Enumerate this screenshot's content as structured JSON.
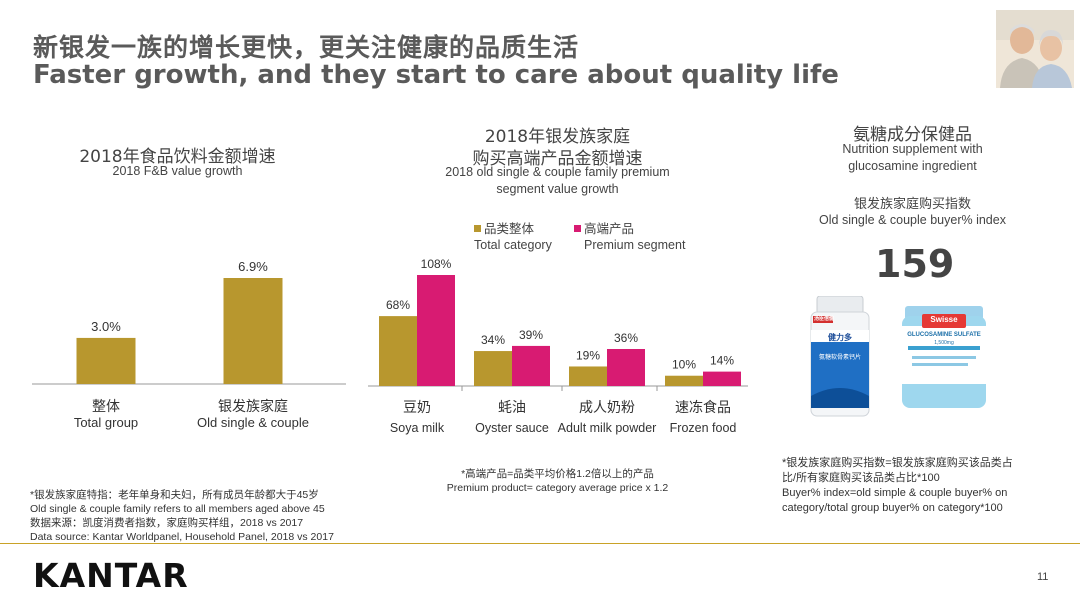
{
  "title": {
    "cn": "新银发一族的增长更快，更关注健康的品质生活",
    "en": "Faster growth, and they start to care about quality life"
  },
  "left_heading": {
    "cn": "2018年食品饮料金额增速",
    "en": "2018 F&B value growth"
  },
  "middle_heading": {
    "cn_line1": "2018年银发族家庭",
    "cn_line2": "购买高端产品金额增速",
    "en_line1": "2018 old single & couple family premium",
    "en_line2": "segment value growth"
  },
  "right_heading": {
    "cn": "氨糖成分保健品",
    "en_line1": "Nutrition supplement with",
    "en_line2": "glucosamine ingredient",
    "index_cn": "银发族家庭购买指数",
    "index_en": "Old single & couple buyer% index",
    "index_value": "159"
  },
  "legend": {
    "total_cn": "品类整体",
    "total_en": "Total category",
    "premium_cn": "高端产品",
    "premium_en": "Premium segment"
  },
  "colors": {
    "gold": "#b8972e",
    "pink": "#d81b72",
    "axis": "#999999",
    "footer_line": "#c9a227"
  },
  "chart_data": [
    {
      "type": "bar",
      "title": "2018年食品饮料金额增速 / 2018 F&B value growth",
      "categories": [
        "整体",
        "银发族家庭"
      ],
      "categories_en": [
        "Total group",
        "Old single & couple"
      ],
      "values": [
        3.0,
        6.9
      ],
      "value_labels": [
        "3.0%",
        "6.9%"
      ],
      "unit": "%",
      "ylim": [
        0,
        7.5
      ]
    },
    {
      "type": "bar",
      "title": "2018年银发族家庭购买高端产品金额增速 / 2018 old single & couple family premium segment value growth",
      "categories": [
        "豆奶",
        "蚝油",
        "成人奶粉",
        "速冻食品"
      ],
      "categories_en": [
        "Soya milk",
        "Oyster sauce",
        "Adult milk powder",
        "Frozen food"
      ],
      "series": [
        {
          "name": "品类整体 Total category",
          "values": [
            68,
            34,
            19,
            10
          ],
          "labels": [
            "68%",
            "34%",
            "19%",
            "10%"
          ]
        },
        {
          "name": "高端产品 Premium segment",
          "values": [
            108,
            39,
            36,
            14
          ],
          "labels": [
            "108%",
            "39%",
            "36%",
            "14%"
          ]
        }
      ],
      "unit": "%",
      "ylim": [
        0,
        115
      ]
    }
  ],
  "notes": {
    "middle_cn": "*高端产品=品类平均价格1.2倍以上的产品",
    "middle_en": "Premium product= category average price x 1.2",
    "left_1": "*银发族家庭特指：老年单身和夫妇，所有成员年龄都大于45岁",
    "left_2": "Old single & couple family refers to all members aged above 45",
    "left_3": "数据来源：凯度消费者指数，家庭购买样组，2018  vs 2017",
    "left_4": "Data source: Kantar Worldpanel, Household Panel, 2018 vs 2017",
    "right_1": "*银发族家庭购买指数=银发族家庭购买该品类占",
    "right_2": "比/所有家庭购买该品类占比*100",
    "right_3": "Buyer% index=old simple & couple buyer% on",
    "right_4": "category/total group buyer% on category*100"
  },
  "products": {
    "jar1_brand": "汤臣倍健",
    "jar1_label": "健力多",
    "jar1_sub": "氨糖软骨素钙片",
    "jar2_brand": "Swisse",
    "jar2_label": "GLUCOSAMINE SULFATE",
    "jar2_sub": "1,500mg"
  },
  "footer": {
    "logo": "KANTAR",
    "page": "11"
  }
}
